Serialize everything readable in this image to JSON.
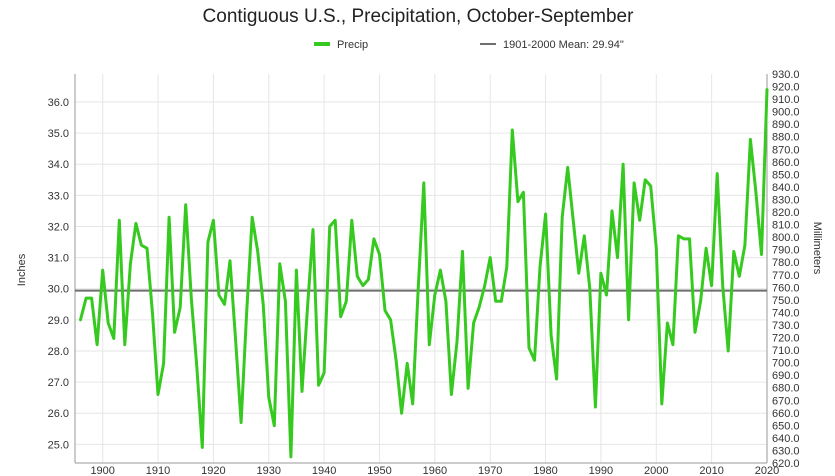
{
  "chart_data": {
    "type": "line",
    "title": "Contiguous U.S., Precipitation, October-September",
    "ylabel": "Inches",
    "ylabel_right": "Millimeters",
    "xlim": [
      1895,
      2020
    ],
    "ylim": [
      24.4,
      36.9
    ],
    "ylim_right": [
      620.0,
      930.0
    ],
    "grid": true,
    "legend_position": "top",
    "x_ticks": [
      "1900",
      "1910",
      "1920",
      "1930",
      "1940",
      "1950",
      "1960",
      "1970",
      "1980",
      "1990",
      "2000",
      "2010",
      "2020"
    ],
    "y_ticks": [
      "25.0",
      "26.0",
      "27.0",
      "28.0",
      "29.0",
      "30.0",
      "31.0",
      "32.0",
      "33.0",
      "34.0",
      "35.0",
      "36.0"
    ],
    "y_right_ticks": [
      "620.0",
      "630.0",
      "640.0",
      "650.0",
      "660.0",
      "670.0",
      "680.0",
      "690.0",
      "700.0",
      "710.0",
      "720.0",
      "730.0",
      "740.0",
      "750.0",
      "760.0",
      "770.0",
      "780.0",
      "790.0",
      "800.0",
      "810.0",
      "820.0",
      "830.0",
      "840.0",
      "850.0",
      "860.0",
      "870.0",
      "880.0",
      "890.0",
      "900.0",
      "910.0",
      "920.0",
      "930.0"
    ],
    "series": [
      {
        "name": "Precip",
        "color": "#36c91f",
        "x": [
          1896,
          1897,
          1898,
          1899,
          1900,
          1901,
          1902,
          1903,
          1904,
          1905,
          1906,
          1907,
          1908,
          1909,
          1910,
          1911,
          1912,
          1913,
          1914,
          1915,
          1916,
          1917,
          1918,
          1919,
          1920,
          1921,
          1922,
          1923,
          1924,
          1925,
          1926,
          1927,
          1928,
          1929,
          1930,
          1931,
          1932,
          1933,
          1934,
          1935,
          1936,
          1937,
          1938,
          1939,
          1940,
          1941,
          1942,
          1943,
          1944,
          1945,
          1946,
          1947,
          1948,
          1949,
          1950,
          1951,
          1952,
          1953,
          1954,
          1955,
          1956,
          1957,
          1958,
          1959,
          1960,
          1961,
          1962,
          1963,
          1964,
          1965,
          1966,
          1967,
          1968,
          1969,
          1970,
          1971,
          1972,
          1973,
          1974,
          1975,
          1976,
          1977,
          1978,
          1979,
          1980,
          1981,
          1982,
          1983,
          1984,
          1985,
          1986,
          1987,
          1988,
          1989,
          1990,
          1991,
          1992,
          1993,
          1994,
          1995,
          1996,
          1997,
          1998,
          1999,
          2000,
          2001,
          2002,
          2003,
          2004,
          2005,
          2006,
          2007,
          2008,
          2009,
          2010,
          2011,
          2012,
          2013,
          2014,
          2015,
          2016,
          2017,
          2018,
          2019,
          2020
        ],
        "values": [
          29.0,
          29.7,
          29.7,
          28.2,
          30.6,
          28.9,
          28.4,
          32.2,
          28.2,
          30.8,
          32.1,
          31.4,
          31.3,
          29.2,
          26.6,
          27.6,
          32.3,
          28.6,
          29.4,
          32.7,
          29.7,
          27.5,
          24.9,
          31.5,
          32.2,
          29.8,
          29.5,
          30.9,
          28.4,
          25.7,
          29.2,
          32.3,
          31.2,
          29.5,
          26.5,
          25.6,
          30.8,
          29.6,
          24.6,
          30.6,
          26.7,
          29.4,
          31.9,
          26.9,
          27.3,
          32.0,
          32.2,
          29.1,
          29.6,
          32.2,
          30.4,
          30.1,
          30.3,
          31.6,
          31.1,
          29.3,
          29.0,
          27.7,
          26.0,
          27.6,
          26.3,
          30.0,
          33.4,
          28.2,
          29.8,
          30.6,
          29.6,
          26.6,
          28.3,
          31.2,
          26.8,
          28.9,
          29.4,
          30.1,
          31.0,
          29.6,
          29.6,
          30.7,
          35.1,
          32.8,
          33.1,
          28.1,
          27.7,
          30.7,
          32.4,
          28.5,
          27.1,
          32.3,
          33.9,
          32.2,
          30.5,
          31.7,
          30.0,
          26.2,
          30.5,
          29.8,
          32.5,
          31.0,
          34.0,
          29.0,
          33.4,
          32.2,
          33.5,
          33.3,
          31.3,
          26.3,
          28.9,
          28.2,
          31.7,
          31.6,
          31.6,
          28.6,
          29.6,
          31.3,
          30.1,
          33.7,
          30.1,
          28.0,
          31.2,
          30.4,
          31.4,
          34.8,
          33.1,
          31.1,
          36.4
        ]
      },
      {
        "name": "1901-2000 Mean: 29.94\"",
        "color": "#6e6e6e",
        "constant": 29.94
      }
    ]
  }
}
